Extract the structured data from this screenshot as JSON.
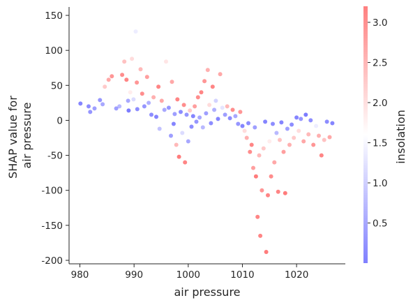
{
  "chart_data": {
    "type": "scatter",
    "title": "",
    "xlabel": "air pressure",
    "ylabel": "SHAP value for\nair pressure",
    "xlim": [
      978,
      1029
    ],
    "ylim": [
      -205,
      162
    ],
    "x_ticks": [
      980,
      990,
      1000,
      1010,
      1020
    ],
    "y_ticks": [
      150,
      100,
      50,
      0,
      -50,
      -100,
      -150,
      -200
    ],
    "grid": false,
    "color_scale": {
      "label": "insolation",
      "range": [
        0.0,
        3.2
      ],
      "ticks": [
        0.5,
        1.0,
        1.5,
        2.0,
        2.5,
        3.0
      ],
      "colormap": [
        "#0000ff",
        "#ffffff",
        "#ff0000"
      ],
      "point_opacity": 0.55
    },
    "series": [
      {
        "points": [
          [
            980.1,
            24,
            0.2
          ],
          [
            981.6,
            20,
            0.3
          ],
          [
            981.9,
            12,
            0.4
          ],
          [
            982.7,
            17,
            0.5
          ],
          [
            983.7,
            29,
            0.4
          ],
          [
            984.2,
            23,
            0.6
          ],
          [
            984.6,
            48,
            2.2
          ],
          [
            985.3,
            58,
            2.6
          ],
          [
            985.9,
            63,
            2.8
          ],
          [
            986.7,
            17,
            0.5
          ],
          [
            987.3,
            20,
            0.8
          ],
          [
            987.8,
            65,
            2.9
          ],
          [
            988.2,
            84,
            2.3
          ],
          [
            988.6,
            58,
            3.0
          ],
          [
            988.9,
            28,
            0.6
          ],
          [
            989.0,
            14,
            0.1
          ],
          [
            989.3,
            40,
            1.8
          ],
          [
            989.6,
            88,
            2.0
          ],
          [
            989.9,
            30,
            1.2
          ],
          [
            990.3,
            127,
            1.4
          ],
          [
            990.5,
            54,
            2.8
          ],
          [
            990.6,
            16,
            0.3
          ],
          [
            990.9,
            110,
            1.6
          ],
          [
            991.2,
            73,
            2.4
          ],
          [
            991.5,
            38,
            2.9
          ],
          [
            991.9,
            20,
            0.4
          ],
          [
            992.4,
            62,
            2.7
          ],
          [
            992.7,
            25,
            0.7
          ],
          [
            993.2,
            8,
            0.3
          ],
          [
            993.6,
            33,
            2.5
          ],
          [
            994.1,
            5,
            0.2
          ],
          [
            994.5,
            48,
            3.0
          ],
          [
            994.7,
            -12,
            0.9
          ],
          [
            995.1,
            28,
            2.6
          ],
          [
            995.6,
            15,
            0.6
          ],
          [
            995.9,
            84,
            1.9
          ],
          [
            996.4,
            18,
            0.4
          ],
          [
            996.8,
            -22,
            0.5
          ],
          [
            997.0,
            55,
            2.6
          ],
          [
            997.3,
            -5,
            0.2
          ],
          [
            997.5,
            9,
            0.5
          ],
          [
            997.8,
            -35,
            2.4
          ],
          [
            998.0,
            30,
            3.0
          ],
          [
            998.3,
            -52,
            3.1
          ],
          [
            998.6,
            12,
            0.3
          ],
          [
            998.9,
            -18,
            1.2
          ],
          [
            999.2,
            22,
            2.9
          ],
          [
            999.4,
            -60,
            3.0
          ],
          [
            999.7,
            8,
            0.4
          ],
          [
            1000.0,
            -30,
            0.6
          ],
          [
            1000.3,
            14,
            2.2
          ],
          [
            1000.6,
            -9,
            0.3
          ],
          [
            1000.9,
            6,
            0.2
          ],
          [
            1001.2,
            20,
            2.7
          ],
          [
            1001.5,
            -2,
            0.4
          ],
          [
            1001.8,
            33,
            2.9
          ],
          [
            1002.1,
            4,
            0.6
          ],
          [
            1002.4,
            40,
            3.0
          ],
          [
            1002.7,
            -10,
            0.8
          ],
          [
            1003.0,
            56,
            2.8
          ],
          [
            1003.3,
            10,
            0.5
          ],
          [
            1003.6,
            72,
            2.5
          ],
          [
            1003.9,
            22,
            2.0
          ],
          [
            1004.2,
            -4,
            0.3
          ],
          [
            1004.5,
            48,
            3.0
          ],
          [
            1004.8,
            15,
            0.7
          ],
          [
            1005.1,
            28,
            1.1
          ],
          [
            1005.5,
            2,
            0.2
          ],
          [
            1005.9,
            66,
            2.6
          ],
          [
            1006.3,
            18,
            1.3
          ],
          [
            1006.8,
            8,
            0.5
          ],
          [
            1007.2,
            20,
            2.4
          ],
          [
            1007.7,
            3,
            0.3
          ],
          [
            1008.2,
            15,
            2.9
          ],
          [
            1008.7,
            6,
            0.6
          ],
          [
            1009.2,
            -5,
            0.4
          ],
          [
            1009.6,
            12,
            2.8
          ],
          [
            1010.0,
            -8,
            0.2
          ],
          [
            1010.4,
            -15,
            2.0
          ],
          [
            1010.8,
            -25,
            2.5
          ],
          [
            1011.1,
            -4,
            0.3
          ],
          [
            1011.4,
            -45,
            2.9
          ],
          [
            1011.7,
            -35,
            3.0
          ],
          [
            1012.0,
            -68,
            2.7
          ],
          [
            1012.3,
            -10,
            0.5
          ],
          [
            1012.5,
            -80,
            3.1
          ],
          [
            1012.8,
            -138,
            3.0
          ],
          [
            1013.1,
            -50,
            2.4
          ],
          [
            1013.3,
            -165,
            3.0
          ],
          [
            1013.6,
            -100,
            2.8
          ],
          [
            1013.9,
            -40,
            2.2
          ],
          [
            1014.2,
            -2,
            0.2
          ],
          [
            1014.4,
            -188,
            3.1
          ],
          [
            1014.7,
            -107,
            3.0
          ],
          [
            1015.0,
            -30,
            1.8
          ],
          [
            1015.3,
            -80,
            2.9
          ],
          [
            1015.6,
            -5,
            0.3
          ],
          [
            1015.9,
            -60,
            2.6
          ],
          [
            1016.3,
            -18,
            0.8
          ],
          [
            1016.6,
            -102,
            3.0
          ],
          [
            1016.9,
            -28,
            2.3
          ],
          [
            1017.2,
            -3,
            0.2
          ],
          [
            1017.6,
            -45,
            2.7
          ],
          [
            1017.9,
            -104,
            3.1
          ],
          [
            1018.3,
            -12,
            0.5
          ],
          [
            1018.7,
            -35,
            2.5
          ],
          [
            1019.1,
            -6,
            0.3
          ],
          [
            1019.5,
            -25,
            2.2
          ],
          [
            1020.0,
            4,
            0.2
          ],
          [
            1020.4,
            -15,
            2.0
          ],
          [
            1020.8,
            2,
            0.4
          ],
          [
            1021.3,
            -30,
            2.6
          ],
          [
            1021.7,
            8,
            0.1
          ],
          [
            1022.2,
            -20,
            2.4
          ],
          [
            1022.6,
            0,
            0.3
          ],
          [
            1023.1,
            -35,
            2.8
          ],
          [
            1023.6,
            -8,
            1.4
          ],
          [
            1024.1,
            -22,
            2.5
          ],
          [
            1024.6,
            -50,
            3.0
          ],
          [
            1025.1,
            -28,
            2.3
          ],
          [
            1025.6,
            -2,
            0.3
          ],
          [
            1026.1,
            -24,
            2.6
          ],
          [
            1026.6,
            -4,
            0.2
          ]
        ]
      }
    ]
  }
}
